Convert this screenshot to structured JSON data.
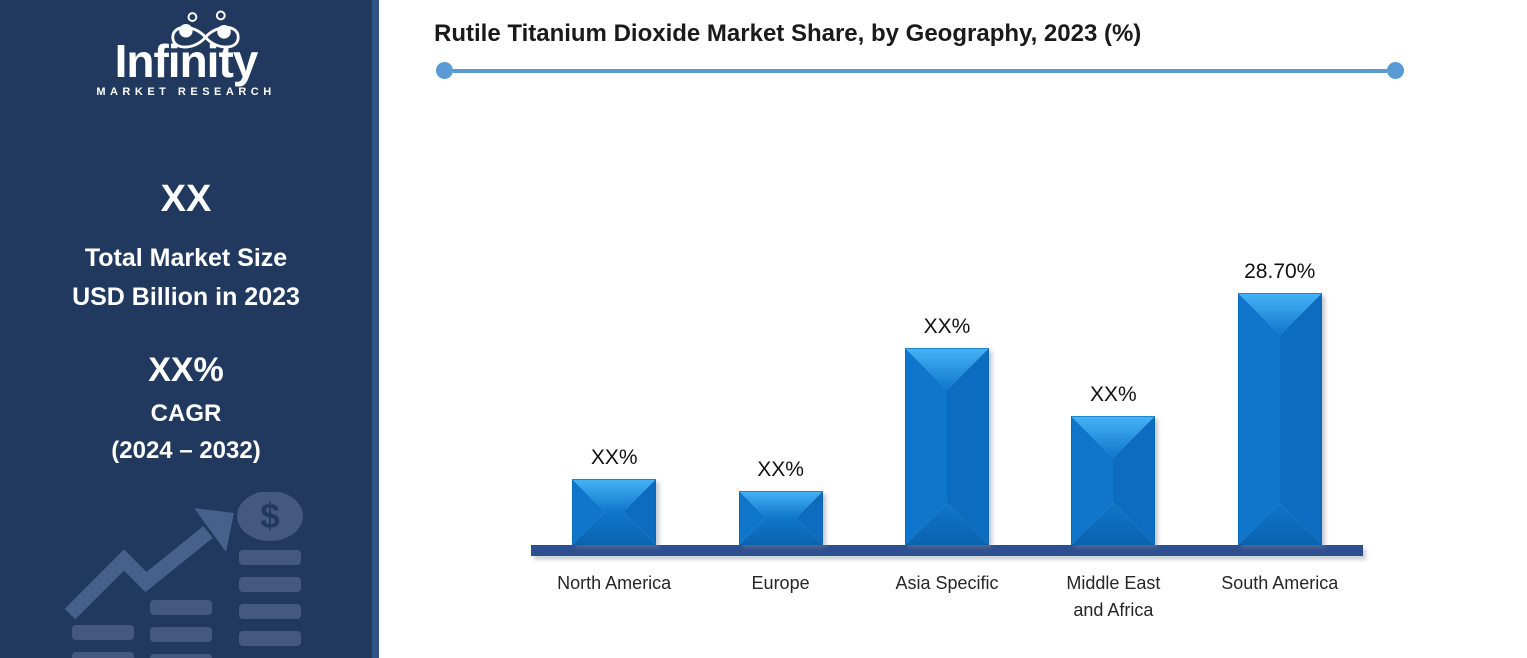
{
  "sidebar": {
    "brand": "Infinity",
    "brand_subtitle": "MARKET RESEARCH",
    "market_size_value": "XX",
    "market_size_label_line1": "Total Market Size",
    "market_size_label_line2": "USD Billion in 2023",
    "cagr_value": "XX%",
    "cagr_label": "CAGR",
    "cagr_period": "(2024 – 2032)",
    "dollar_glyph": "$",
    "colors": {
      "background": "#21395E",
      "edge_strip": "#2E5384",
      "graphic": "#44597E",
      "graphic_arrow": "#47618C"
    }
  },
  "chart_data": {
    "type": "bar",
    "title": "Rutile Titanium Dioxide Market Share, by Geography, 2023 (%)",
    "categories": [
      "North America",
      "Europe",
      "Asia Specific",
      "Middle East and Africa",
      "South America"
    ],
    "value_labels": [
      "XX%",
      "XX%",
      "XX%",
      "XX%",
      "28.70%"
    ],
    "values": [
      null,
      null,
      null,
      null,
      28.7
    ],
    "estimated_values_from_bar_heights": [
      7.5,
      6.2,
      22.4,
      14.7,
      28.7
    ],
    "xlabel": "",
    "ylabel": "",
    "grid": false,
    "legend": "none",
    "bar_color": "#0F76CB",
    "bar_color_dark": "#0C6DC0",
    "bar_bevel_highlight": "#45B3F7",
    "bar_bevel_shadow": "#0A63AF",
    "bar_outline": "#0A5FAD",
    "axis_line_color": "#2D4F90",
    "divider_color": "#5B9BD5",
    "title_color": "#1A1A1A"
  }
}
